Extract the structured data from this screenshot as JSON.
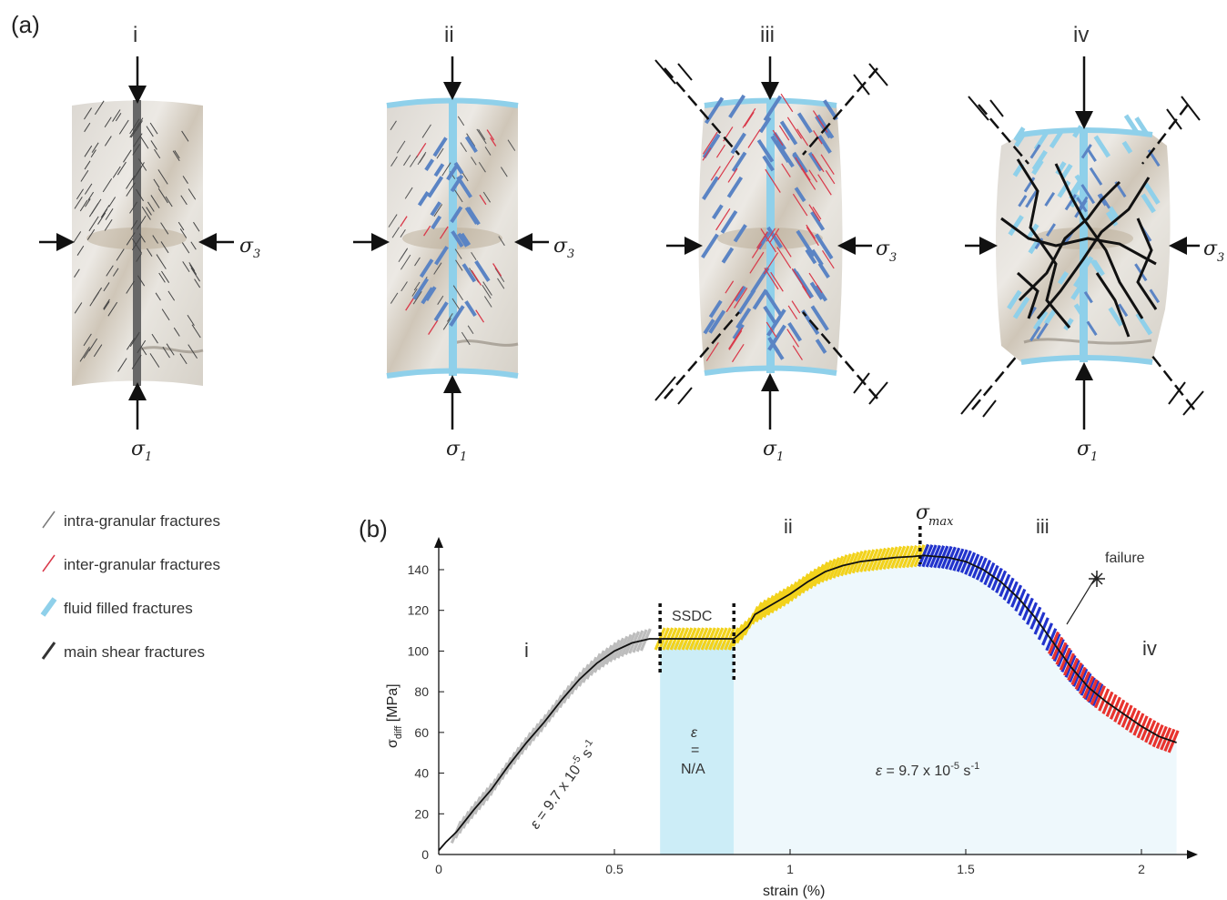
{
  "panel_a": {
    "label": "(a)",
    "stages": [
      {
        "label": "i",
        "sigma1": "σ",
        "sigma1_sub": "1",
        "sigma3": "σ",
        "sigma3_sub": "3"
      },
      {
        "label": "ii",
        "sigma1": "σ",
        "sigma1_sub": "1",
        "sigma3": "σ",
        "sigma3_sub": "3"
      },
      {
        "label": "iii",
        "sigma1": "σ",
        "sigma1_sub": "1",
        "sigma3": "σ",
        "sigma3_sub": "3"
      },
      {
        "label": "iv",
        "sigma1": "σ",
        "sigma1_sub": "1",
        "sigma3": "σ",
        "sigma3_sub": "3"
      }
    ]
  },
  "legend": {
    "items": [
      {
        "label": "intra-granular fractures",
        "color": "#7a7a7a"
      },
      {
        "label": "inter-granular fractures",
        "color": "#d9394a"
      },
      {
        "label": "fluid filled fractures",
        "color": "#8fd0ea"
      },
      {
        "label": "main shear fractures",
        "color": "#333333"
      }
    ]
  },
  "panel_b": {
    "label": "(b)",
    "region_labels": {
      "i": "i",
      "ii": "ii",
      "iii": "iii",
      "iv": "iv"
    },
    "ssdc": "SSDC",
    "sigma_max": "σ",
    "sigma_max_sub": "max",
    "failure": "failure",
    "rate_na": {
      "eps": "ε",
      "eq": "=",
      "value": "N/A"
    },
    "rate_main": {
      "eps": "ε",
      "text": " = 9.7 x 10",
      "exp": "-5",
      "unit": " s",
      "unit_exp": "-1"
    },
    "rate_i": {
      "eps": "ε",
      "text": " = 9.7 x 10",
      "exp": "-5",
      "unit": " s",
      "unit_exp": "-1"
    }
  },
  "chart_data": {
    "type": "line",
    "xlabel": "strain (%)",
    "ylabel": "σdiff [MPa]",
    "ylabel_main": "σ",
    "ylabel_sub": "diff",
    "ylabel_unit": " [MPa]",
    "xlim": [
      0,
      2.15
    ],
    "ylim": [
      0,
      150
    ],
    "xticks": [
      0,
      0.5,
      1,
      1.5,
      2
    ],
    "xtick_labels": [
      "0",
      "0.5",
      "1",
      "1.5",
      "2"
    ],
    "yticks": [
      0,
      20,
      40,
      60,
      80,
      100,
      120,
      140
    ],
    "ytick_labels": [
      "0",
      "20",
      "40",
      "60",
      "80",
      "100",
      "120",
      "140"
    ],
    "grid": false,
    "series": [
      {
        "x": [
          0,
          0.02,
          0.05,
          0.1,
          0.15,
          0.2,
          0.25,
          0.3,
          0.35,
          0.4,
          0.45,
          0.5,
          0.55,
          0.6,
          0.63,
          0.65,
          0.7,
          0.75,
          0.8,
          0.84,
          0.88,
          0.9,
          0.95,
          1.0,
          1.05,
          1.1,
          1.15,
          1.2,
          1.25,
          1.3,
          1.35,
          1.38,
          1.45,
          1.5,
          1.55,
          1.6,
          1.65,
          1.7,
          1.75,
          1.8,
          1.85,
          1.9,
          1.95,
          2.0,
          2.05,
          2.1
        ],
        "y": [
          2,
          6,
          11,
          22,
          32,
          44,
          55,
          65,
          76,
          86,
          94,
          100,
          104,
          106,
          106,
          106,
          106,
          106,
          106,
          106,
          112,
          118,
          123,
          128,
          134,
          139,
          142,
          144,
          145,
          146,
          146.5,
          147,
          146,
          144,
          140,
          134,
          126,
          116,
          104,
          92,
          82,
          75,
          69,
          63,
          58,
          55
        ]
      }
    ],
    "bands": [
      {
        "name": "i",
        "color": "#bdbdbd",
        "x": [
          0.05,
          0.6
        ]
      },
      {
        "name": "SSDC",
        "color": "#f2d21b",
        "x": [
          0.63,
          0.84
        ]
      },
      {
        "name": "ii",
        "color": "#f2d21b",
        "x": [
          0.84,
          1.38
        ]
      },
      {
        "name": "iii",
        "color": "#2233cc",
        "x": [
          1.38,
          1.88
        ]
      },
      {
        "name": "iv",
        "color": "#e8332e",
        "x": [
          1.75,
          2.1
        ]
      }
    ],
    "shaded_regions": [
      {
        "x": [
          0.63,
          0.84
        ],
        "color": "#ccedf7"
      },
      {
        "x": [
          0.84,
          2.1
        ],
        "color": "#eef8fc"
      }
    ],
    "markers": {
      "sigma_max_x": 1.37,
      "ssdc_start_x": 0.63,
      "ssdc_end_x": 0.84,
      "failure_x": 1.8
    }
  }
}
